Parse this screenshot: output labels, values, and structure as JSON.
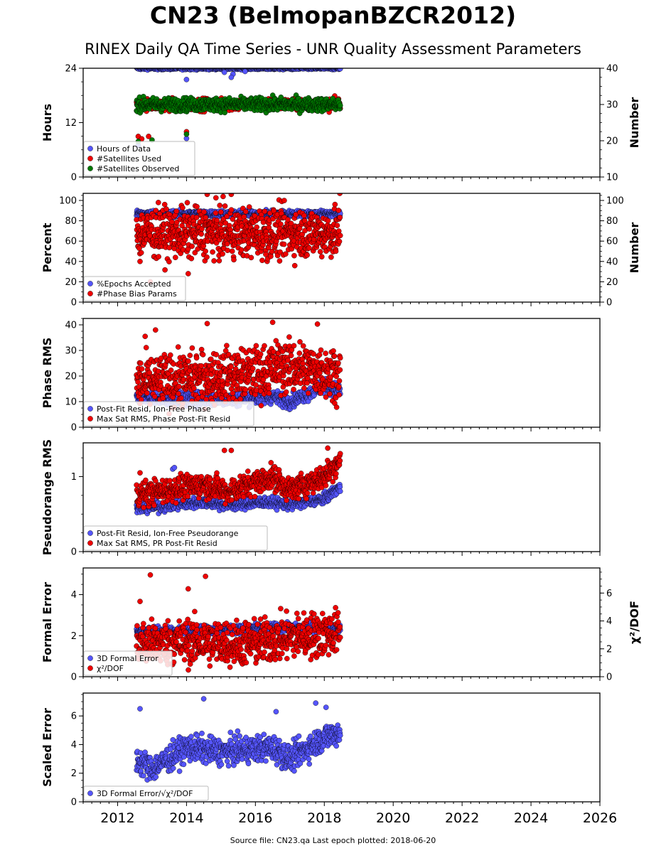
{
  "title": "CN23 (BelmopanBZCR2012)",
  "subtitle": "RINEX Daily QA Time Series - UNR Quality Assessment Parameters",
  "footer": "Source file: CN23.qa Last epoch plotted: 2018-06-20",
  "colors": {
    "blue": "#5555ff",
    "red": "#ee0000",
    "green": "#007700",
    "edge": "#000000"
  },
  "chart_data": [
    {
      "type": "scatter",
      "name": "hours-panel",
      "xlim": [
        2011.0,
        2026.0
      ],
      "x_ticks": [
        2012,
        2014,
        2016,
        2018,
        2020,
        2022,
        2024,
        2026
      ],
      "ylabel": "Hours",
      "ylim": [
        0,
        24
      ],
      "yticks": [
        0,
        12,
        24
      ],
      "ylabel_right": "Number",
      "ylim_right": [
        10,
        40
      ],
      "yticks_right": [
        10,
        20,
        30,
        40
      ],
      "legend": "bottom-left",
      "series": [
        {
          "name": "Hours of Data",
          "color": "blue",
          "axis": "left",
          "base": 24.0,
          "noise": 0.15,
          "outliers": [
            [
              2012.6,
              7.0
            ],
            [
              2014.0,
              8.5
            ],
            [
              2014.0,
              21.5
            ],
            [
              2015.1,
              23.1
            ],
            [
              2015.35,
              22.7
            ],
            [
              2015.7,
              23.3
            ],
            [
              2015.3,
              22.0
            ]
          ]
        },
        {
          "name": "#Satellites Used",
          "color": "red",
          "axis": "right",
          "base": 30.0,
          "noise": 0.8,
          "outliers": [
            [
              2012.6,
              21.2
            ],
            [
              2012.9,
              21.2
            ],
            [
              2014.0,
              22.5
            ],
            [
              2012.7,
              20.5
            ]
          ]
        },
        {
          "name": "#Satellites Observed",
          "color": "green",
          "axis": "right",
          "base": 30.0,
          "noise": 0.9,
          "outliers": [
            [
              2012.6,
              19.8
            ],
            [
              2014.0,
              21.8
            ],
            [
              2013.0,
              20.2
            ]
          ]
        }
      ]
    },
    {
      "type": "scatter",
      "name": "percent-panel",
      "xlim": [
        2011.0,
        2026.0
      ],
      "ylabel": "Percent",
      "ylim": [
        0,
        107
      ],
      "yticks": [
        0,
        20,
        40,
        60,
        80,
        100
      ],
      "ylabel_right": "Number",
      "ylim_right": [
        0,
        107
      ],
      "yticks_right": [
        0,
        20,
        40,
        60,
        80,
        100
      ],
      "legend": "bottom-left",
      "series": [
        {
          "name": "%Epochs Accepted",
          "color": "blue",
          "axis": "left",
          "base": 87.0,
          "noise": 1.5,
          "outliers": []
        },
        {
          "name": "#Phase Bias Params",
          "color": "red",
          "axis": "right",
          "base": 68.0,
          "noise": 12.0,
          "outliers": [
            [
              2012.65,
              40
            ],
            [
              2014.05,
              28
            ],
            [
              2012.95,
              20
            ],
            [
              2016.3,
              47
            ],
            [
              2014.6,
              106
            ],
            [
              2015.3,
              106
            ],
            [
              2018.45,
              107
            ]
          ]
        }
      ]
    },
    {
      "type": "scatter",
      "name": "phase-rms-panel",
      "xlim": [
        2011.0,
        2026.0
      ],
      "ylabel": "Phase RMS",
      "ylim": [
        0,
        42.5
      ],
      "yticks": [
        0,
        10,
        20,
        30,
        40
      ],
      "legend": "bottom-left",
      "series": [
        {
          "name": "Post-Fit Resid, Ion-Free Phase",
          "color": "blue",
          "axis": "left",
          "trend": [
            [
              2012.5,
              12.0
            ],
            [
              2014.0,
              11.0
            ],
            [
              2015.5,
              11.0
            ],
            [
              2016.5,
              12.0
            ],
            [
              2017.0,
              10.0
            ],
            [
              2018.0,
              16.0
            ],
            [
              2018.5,
              14.0
            ]
          ],
          "noise": 1.3,
          "outliers": []
        },
        {
          "name": "Max Sat RMS, Phase Post-Fit Resid",
          "color": "red",
          "axis": "left",
          "trend": [
            [
              2012.5,
              17.0
            ],
            [
              2014.0,
              19.0
            ],
            [
              2016.0,
              21.0
            ],
            [
              2016.8,
              24.0
            ],
            [
              2018.0,
              22.0
            ],
            [
              2018.5,
              21.0
            ]
          ],
          "noise": 5.0,
          "outliers": [
            [
              2014.6,
              40.5
            ],
            [
              2016.5,
              41.0
            ],
            [
              2017.8,
              40.3
            ],
            [
              2013.1,
              38.0
            ],
            [
              2012.8,
              35.5
            ]
          ]
        }
      ]
    },
    {
      "type": "scatter",
      "name": "pseudorange-rms-panel",
      "xlim": [
        2011.0,
        2026.0
      ],
      "ylabel": "Pseudorange RMS",
      "ylim": [
        0,
        1.45
      ],
      "yticks": [
        0,
        1
      ],
      "legend": "bottom-left",
      "series": [
        {
          "name": "Post-Fit Resid, Ion-Free Pseudorange",
          "color": "blue",
          "axis": "left",
          "trend": [
            [
              2012.5,
              0.57
            ],
            [
              2014.5,
              0.66
            ],
            [
              2015.2,
              0.62
            ],
            [
              2016.3,
              0.66
            ],
            [
              2017.0,
              0.63
            ],
            [
              2018.0,
              0.7
            ],
            [
              2018.4,
              0.85
            ]
          ],
          "noise": 0.035,
          "outliers": [
            [
              2013.6,
              1.1
            ],
            [
              2013.65,
              1.12
            ]
          ]
        },
        {
          "name": "Max Sat RMS, PR Post-Fit Resid",
          "color": "red",
          "axis": "left",
          "trend": [
            [
              2012.5,
              0.75
            ],
            [
              2014.5,
              0.9
            ],
            [
              2015.2,
              0.8
            ],
            [
              2016.5,
              1.0
            ],
            [
              2017.0,
              0.82
            ],
            [
              2018.0,
              1.0
            ],
            [
              2018.4,
              1.2
            ]
          ],
          "noise": 0.08,
          "outliers": [
            [
              2015.1,
              1.35
            ],
            [
              2015.3,
              1.35
            ],
            [
              2018.1,
              1.38
            ],
            [
              2012.65,
              1.05
            ]
          ]
        }
      ]
    },
    {
      "type": "scatter",
      "name": "formal-error-panel",
      "xlim": [
        2011.0,
        2026.0
      ],
      "ylabel": "Formal Error",
      "ylim": [
        0,
        5.3
      ],
      "yticks": [
        0,
        2,
        4
      ],
      "ylabel_right": "χ²/DOF",
      "ylim_right": [
        0,
        7.8
      ],
      "yticks_right": [
        0,
        2,
        4,
        6
      ],
      "legend": "bottom-left",
      "series": [
        {
          "name": "3D Formal Error",
          "color": "blue",
          "axis": "left",
          "trend": [
            [
              2012.5,
              2.2
            ],
            [
              2015.0,
              2.3
            ],
            [
              2016.5,
              2.4
            ],
            [
              2018.5,
              2.35
            ]
          ],
          "noise": 0.1,
          "outliers": []
        },
        {
          "name": "χ²/DOF",
          "color": "red",
          "axis": "right",
          "trend": [
            [
              2012.5,
              2.3
            ],
            [
              2014.0,
              2.5
            ],
            [
              2016.0,
              2.4
            ],
            [
              2016.8,
              2.8
            ],
            [
              2018.5,
              3.2
            ]
          ],
          "noise": 0.8,
          "outliers": [
            [
              2012.95,
              7.3
            ],
            [
              2014.55,
              7.2
            ],
            [
              2014.05,
              6.3
            ],
            [
              2012.65,
              5.4
            ]
          ]
        }
      ]
    },
    {
      "type": "scatter",
      "name": "scaled-error-panel",
      "xlim": [
        2011.0,
        2026.0
      ],
      "ylabel": "Scaled Error",
      "ylim": [
        0,
        7.6
      ],
      "yticks": [
        0,
        2,
        4,
        6
      ],
      "legend": "bottom-left",
      "series": [
        {
          "name": "3D Formal Error/√χ²/DOF",
          "color": "blue",
          "axis": "left",
          "trend": [
            [
              2012.5,
              3.0
            ],
            [
              2013.0,
              2.3
            ],
            [
              2014.0,
              3.8
            ],
            [
              2015.0,
              3.5
            ],
            [
              2016.5,
              3.8
            ],
            [
              2017.0,
              3.0
            ],
            [
              2018.0,
              4.5
            ],
            [
              2018.5,
              4.9
            ]
          ],
          "noise": 0.45,
          "outliers": [
            [
              2014.5,
              7.2
            ],
            [
              2012.65,
              6.5
            ],
            [
              2017.75,
              6.9
            ],
            [
              2018.05,
              6.6
            ],
            [
              2016.6,
              6.3
            ]
          ]
        }
      ]
    }
  ]
}
